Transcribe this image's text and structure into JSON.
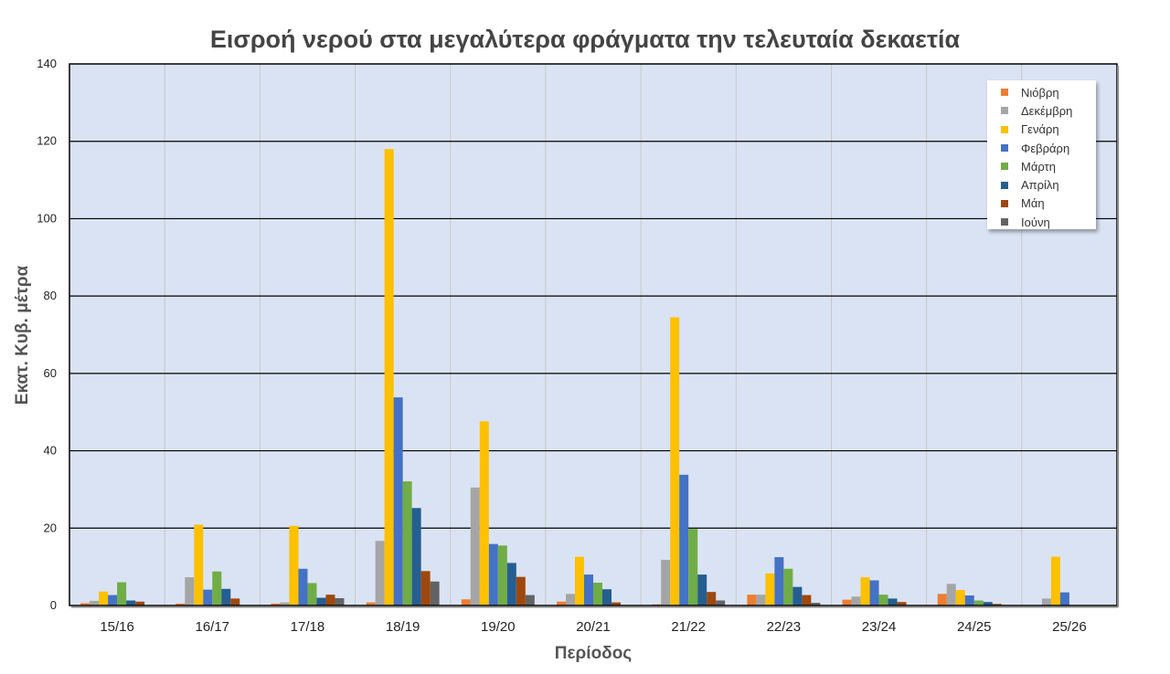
{
  "chart_data": {
    "type": "bar",
    "title": "Εισροή νερού στα μεγαλύτερα φράγματα την τελευταία δεκαετία",
    "xlabel": "Περίοδος",
    "ylabel": "Εκατ.  Κυβ. μέτρα",
    "ylim": [
      0,
      140
    ],
    "yticks": [
      "0",
      "20",
      "40",
      "60",
      "80",
      "100",
      "120",
      "140"
    ],
    "grid": true,
    "legend_position": "top-right",
    "categories": [
      "15/16",
      "16/17",
      "17/18",
      "18/19",
      "19/20",
      "20/21",
      "21/22",
      "22/23",
      "23/24",
      "24/25",
      "25/26"
    ],
    "series": [
      {
        "name": "Νιόβρη",
        "color": "#ED7D31",
        "values": [
          0.6,
          0.5,
          0.5,
          0.8,
          1.6,
          1.0,
          0.3,
          2.8,
          1.5,
          3.0,
          null
        ]
      },
      {
        "name": "Δεκέμβρη",
        "color": "#A5A5A5",
        "values": [
          1.2,
          7.3,
          0.8,
          16.7,
          30.5,
          3.0,
          11.8,
          2.8,
          2.3,
          5.6,
          1.8
        ]
      },
      {
        "name": "Γενάρη",
        "color": "#FFC000",
        "values": [
          3.6,
          20.9,
          20.6,
          118.0,
          47.6,
          12.6,
          74.5,
          8.3,
          7.3,
          4.0,
          12.6
        ]
      },
      {
        "name": "Φεβράρη",
        "color": "#4472C4",
        "values": [
          2.7,
          4.1,
          9.5,
          53.8,
          15.9,
          8.0,
          33.8,
          12.5,
          6.5,
          2.6,
          3.4
        ]
      },
      {
        "name": "Μάρτη",
        "color": "#70AD47",
        "values": [
          6.0,
          8.8,
          5.8,
          32.1,
          15.5,
          5.9,
          19.8,
          9.5,
          2.8,
          1.3,
          null
        ]
      },
      {
        "name": "Απρίλη",
        "color": "#255E91",
        "values": [
          1.3,
          4.3,
          2.0,
          25.2,
          11.0,
          4.2,
          8.0,
          4.8,
          1.8,
          0.9,
          null
        ]
      },
      {
        "name": "Μάη",
        "color": "#9E480E",
        "values": [
          1.0,
          1.8,
          2.8,
          8.9,
          7.4,
          0.8,
          3.5,
          2.7,
          0.9,
          0.4,
          null
        ]
      },
      {
        "name": "Ιούνη",
        "color": "#636363",
        "values": [
          null,
          null,
          1.9,
          6.2,
          2.7,
          null,
          1.3,
          0.7,
          null,
          null,
          null
        ]
      }
    ]
  }
}
